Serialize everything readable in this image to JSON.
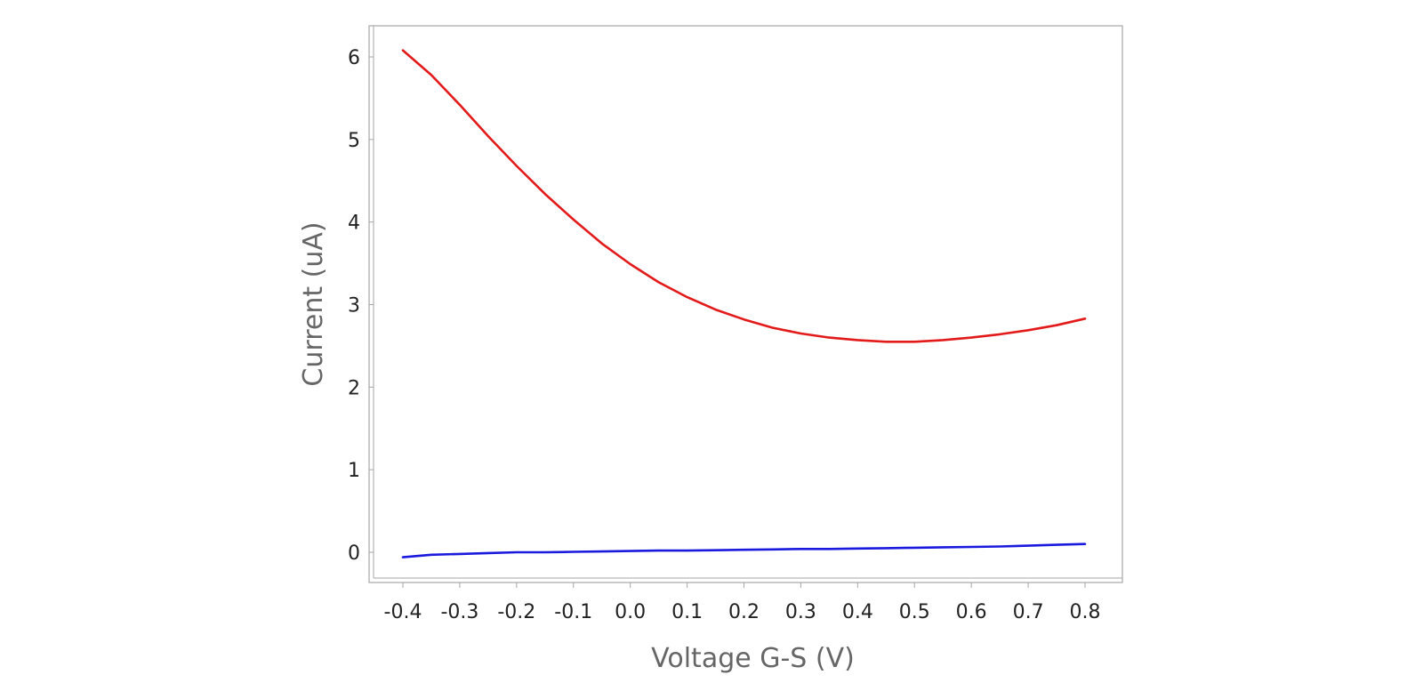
{
  "chart_data": {
    "type": "line",
    "title": "",
    "xlabel": "Voltage G-S (V)",
    "ylabel": "Current (uA)",
    "xlim": [
      -0.46,
      0.86
    ],
    "ylim": [
      -0.37,
      6.4
    ],
    "xticks": [
      -0.4,
      -0.3,
      -0.2,
      -0.1,
      0.0,
      0.1,
      0.2,
      0.3,
      0.4,
      0.5,
      0.6,
      0.7,
      0.8
    ],
    "xtick_labels": [
      "-0.4",
      "-0.3",
      "-0.2",
      "-0.1",
      "0.0",
      "0.1",
      "0.2",
      "0.3",
      "0.4",
      "0.5",
      "0.6",
      "0.7",
      "0.8"
    ],
    "yticks": [
      0,
      1,
      2,
      3,
      4,
      5,
      6
    ],
    "ytick_labels": [
      "0",
      "1",
      "2",
      "3",
      "4",
      "5",
      "6"
    ],
    "grid": false,
    "legend": "none",
    "series": [
      {
        "color": "#e31a1a",
        "x": [
          -0.4,
          -0.35,
          -0.3,
          -0.25,
          -0.2,
          -0.15,
          -0.1,
          -0.05,
          0.0,
          0.05,
          0.1,
          0.15,
          0.2,
          0.25,
          0.3,
          0.35,
          0.4,
          0.45,
          0.5,
          0.55,
          0.6,
          0.65,
          0.7,
          0.75,
          0.8
        ],
        "y": [
          6.08,
          5.78,
          5.42,
          5.04,
          4.68,
          4.34,
          4.03,
          3.74,
          3.49,
          3.27,
          3.09,
          2.94,
          2.82,
          2.72,
          2.65,
          2.6,
          2.57,
          2.55,
          2.55,
          2.57,
          2.6,
          2.64,
          2.69,
          2.75,
          2.83
        ]
      },
      {
        "color": "#1a1adf",
        "x": [
          -0.4,
          -0.35,
          -0.3,
          -0.25,
          -0.2,
          -0.15,
          -0.1,
          -0.05,
          0.0,
          0.05,
          0.1,
          0.15,
          0.2,
          0.25,
          0.3,
          0.35,
          0.4,
          0.45,
          0.5,
          0.55,
          0.6,
          0.65,
          0.7,
          0.75,
          0.8
        ],
        "y": [
          -0.06,
          -0.03,
          -0.02,
          -0.01,
          0.0,
          0.0,
          0.005,
          0.01,
          0.015,
          0.02,
          0.02,
          0.025,
          0.03,
          0.035,
          0.04,
          0.04,
          0.045,
          0.05,
          0.055,
          0.06,
          0.065,
          0.07,
          0.08,
          0.09,
          0.1
        ]
      }
    ],
    "colors": {
      "frame": "#a6a6a6",
      "tick_text": "#222222",
      "axis_title": "#666666"
    }
  }
}
